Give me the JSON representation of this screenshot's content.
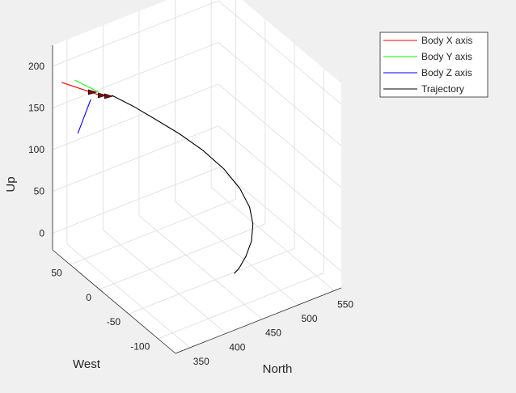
{
  "chart_data": {
    "type": "line",
    "projection": "3d",
    "title": "",
    "xlabel": "North",
    "ylabel": "West",
    "zlabel": "Up",
    "xlim": [
      330,
      560
    ],
    "ylim": [
      -130,
      80
    ],
    "zlim": [
      -20,
      225
    ],
    "xticks": [
      "350",
      "400",
      "450",
      "500",
      "550"
    ],
    "yticks": [
      "50",
      "0",
      "-50",
      "-100"
    ],
    "zticks": [
      "0",
      "50",
      "100",
      "150",
      "200"
    ],
    "grid": true,
    "legend_position": "top-right",
    "legend": [
      "Body X axis",
      "Body Y axis",
      "Body Z axis",
      "Trajectory"
    ],
    "series": [
      {
        "name": "Trajectory",
        "color": "#000000",
        "points": [
          {
            "north": 400,
            "west": 65,
            "up": 150
          },
          {
            "north": 410,
            "west": 40,
            "up": 148
          },
          {
            "north": 420,
            "west": 15,
            "up": 144
          },
          {
            "north": 433,
            "west": -10,
            "up": 137
          },
          {
            "north": 445,
            "west": -35,
            "up": 128
          },
          {
            "north": 458,
            "west": -55,
            "up": 113
          },
          {
            "north": 468,
            "west": -70,
            "up": 95
          },
          {
            "north": 475,
            "west": -78,
            "up": 75
          },
          {
            "north": 478,
            "west": -80,
            "up": 55
          },
          {
            "north": 476,
            "west": -80,
            "up": 35
          },
          {
            "north": 470,
            "west": -78,
            "up": 18
          },
          {
            "north": 462,
            "west": -76,
            "up": 5
          },
          {
            "north": 456,
            "west": -75,
            "up": 0
          }
        ]
      }
    ],
    "body_axes": [
      {
        "name": "Body X axis",
        "color": "#ff0000"
      },
      {
        "name": "Body Y axis",
        "color": "#00ff00"
      },
      {
        "name": "Body Z axis",
        "color": "#0000ff"
      }
    ]
  }
}
